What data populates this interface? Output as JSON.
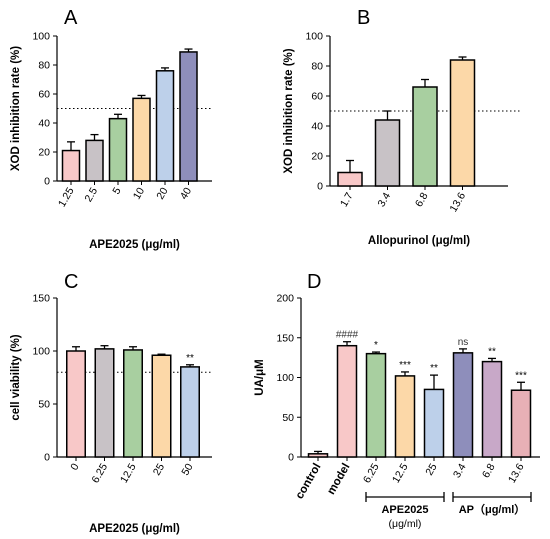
{
  "chart_data": [
    {
      "panel": "A",
      "type": "bar",
      "xlabel": "APE2025 (μg/ml)",
      "ylabel": "XOD inhibition rate (%)",
      "ylim": [
        0,
        100
      ],
      "yticks": [
        0,
        20,
        40,
        60,
        80,
        100
      ],
      "reference_line": 50,
      "categories": [
        "1.25",
        "2.5",
        "5",
        "10",
        "20",
        "40"
      ],
      "values": [
        21,
        28,
        43,
        57,
        76,
        89
      ],
      "errors": [
        6,
        4,
        3,
        2,
        2,
        2
      ],
      "significance": [
        "",
        "",
        "",
        "",
        "",
        ""
      ],
      "colors": [
        "#F8C8C8",
        "#C8C2C6",
        "#A8CFA0",
        "#FCD8A8",
        "#BDD0EA",
        "#8E8EBB"
      ]
    },
    {
      "panel": "B",
      "type": "bar",
      "xlabel": "Allopurinol (μg/ml)",
      "ylabel": "XOD inhibition rate (%)",
      "ylim": [
        0,
        100
      ],
      "yticks": [
        0,
        20,
        40,
        60,
        80,
        100
      ],
      "reference_line": 50,
      "categories": [
        "1.7",
        "3.4",
        "6.8",
        "13.6"
      ],
      "values": [
        9,
        44,
        66,
        84
      ],
      "errors": [
        8,
        6,
        5,
        2
      ],
      "significance": [
        "",
        "",
        "",
        ""
      ],
      "colors": [
        "#F8C8C8",
        "#C8C2C6",
        "#A8CFA0",
        "#FCD8A8"
      ]
    },
    {
      "panel": "C",
      "type": "bar",
      "xlabel": "APE2025 (μg/ml)",
      "ylabel": "cell viability (%)",
      "ylim": [
        0,
        150
      ],
      "yticks": [
        0,
        50,
        100,
        150
      ],
      "reference_line": 80,
      "categories": [
        "0",
        "6.25",
        "12.5",
        "25",
        "50"
      ],
      "values": [
        100,
        102,
        101,
        96,
        85
      ],
      "errors": [
        4,
        3,
        3,
        1,
        2
      ],
      "significance": [
        "",
        "",
        "",
        "",
        "**"
      ],
      "colors": [
        "#F8C8C8",
        "#C8C2C6",
        "#A8CFA0",
        "#FCD8A8",
        "#BDD0EA"
      ]
    },
    {
      "panel": "D",
      "type": "bar",
      "xlabel": "",
      "ylabel": "UA/μM",
      "ylim": [
        0,
        200
      ],
      "yticks": [
        0,
        50,
        100,
        150,
        200
      ],
      "categories": [
        "control",
        "model",
        "6.25",
        "12.5",
        "25",
        "3.4",
        "6.8",
        "13.6"
      ],
      "values": [
        4,
        140,
        130,
        102,
        85,
        131,
        120,
        84
      ],
      "errors": [
        3,
        5,
        2,
        5,
        18,
        5,
        4,
        10
      ],
      "significance": [
        "",
        "####",
        "*",
        "***",
        "**",
        "ns",
        "**",
        "***"
      ],
      "colors": [
        "#F8C8C8",
        "#F8C8C8",
        "#A8CFA0",
        "#FCD8A8",
        "#BDD0EA",
        "#8E8EBB",
        "#C8A8C8",
        "#E8B0B6"
      ],
      "groups": [
        {
          "label": "APE2025",
          "unit": "(μg/ml)",
          "from": 2,
          "to": 4
        },
        {
          "label": "AP（μg/ml）",
          "unit": "",
          "from": 5,
          "to": 7
        }
      ]
    }
  ]
}
